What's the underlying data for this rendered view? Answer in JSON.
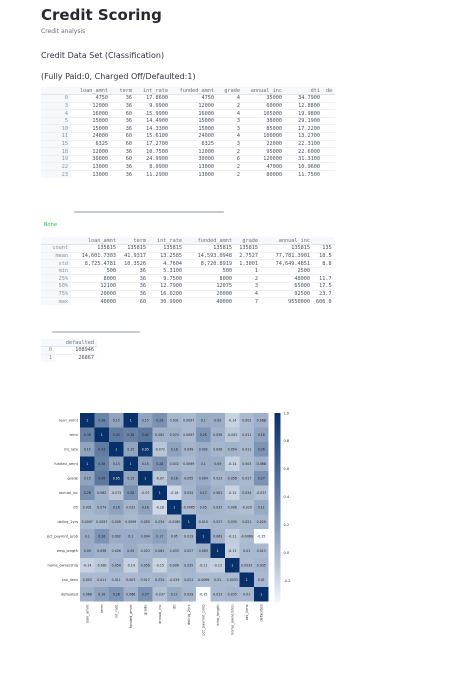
{
  "page": {
    "title": "Credit Scoring",
    "subtitle": "Credit analysis",
    "section_title": "Credit Data Set (Classification)",
    "legend_note": "(Fully Paid:0, Charged Off/Defaulted:1)",
    "none_output": "None"
  },
  "head_table": {
    "columns": [
      "",
      "loan_amnt",
      "term",
      "int_rate",
      "funded_amnt",
      "grade",
      "annual_inc",
      "dti",
      "de"
    ],
    "rows": [
      [
        "0",
        "4750",
        "36",
        "17.8600",
        "4750",
        "4",
        "35000",
        "34.7900",
        ""
      ],
      [
        "3",
        "12000",
        "36",
        "9.9900",
        "12000",
        "2",
        "60000",
        "12.8800",
        ""
      ],
      [
        "4",
        "16000",
        "60",
        "15.9900",
        "16000",
        "4",
        "105000",
        "19.9800",
        ""
      ],
      [
        "5",
        "15000",
        "36",
        "14.4900",
        "15000",
        "3",
        "38000",
        "29.1900",
        ""
      ],
      [
        "10",
        "15000",
        "36",
        "14.3300",
        "15000",
        "3",
        "85000",
        "17.2200",
        ""
      ],
      [
        "11",
        "24000",
        "60",
        "15.6100",
        "24000",
        "4",
        "100000",
        "13.2700",
        ""
      ],
      [
        "15",
        "6325",
        "60",
        "17.2700",
        "6325",
        "3",
        "22000",
        "22.3100",
        ""
      ],
      [
        "18",
        "12000",
        "36",
        "10.7500",
        "12000",
        "2",
        "95000",
        "22.6000",
        ""
      ],
      [
        "19",
        "30000",
        "60",
        "24.9900",
        "30000",
        "6",
        "120000",
        "31.3100",
        ""
      ],
      [
        "22",
        "13000",
        "36",
        "8.9900",
        "13000",
        "2",
        "47000",
        "10.9600",
        ""
      ],
      [
        "23",
        "13000",
        "36",
        "11.2900",
        "13000",
        "2",
        "80000",
        "11.7500",
        ""
      ]
    ]
  },
  "describe_table": {
    "columns": [
      "",
      "loan_amnt",
      "term",
      "int_rate",
      "funded_amnt",
      "grade",
      "annual_inc",
      ""
    ],
    "rows": [
      [
        "count",
        "135815",
        "135815",
        "135815",
        "135815",
        "135815",
        "135815",
        "135"
      ],
      [
        "mean",
        "14,601.7303",
        "41.9317",
        "13.2585",
        "14,593.0948",
        "2.7527",
        "77,781.3901",
        "18.5"
      ],
      [
        "std",
        "8,725.4781",
        "10.3526",
        "4.7604",
        "8,720.8919",
        "1.3001",
        "74,649.4851",
        "8.8"
      ],
      [
        "min",
        "500",
        "36",
        "5.3100",
        "500",
        "1",
        "2500",
        ""
      ],
      [
        "25%",
        "8000",
        "36",
        "9.7500",
        "8000",
        "2",
        "48000",
        "11.7"
      ],
      [
        "50%",
        "12100",
        "36",
        "12.7900",
        "12075",
        "3",
        "65000",
        "17.5"
      ],
      [
        "75%",
        "20000",
        "36",
        "16.0200",
        "20000",
        "4",
        "92500",
        "23.7"
      ],
      [
        "max",
        "40000",
        "60",
        "30.9900",
        "40000",
        "7",
        "9550000",
        "606.0"
      ]
    ]
  },
  "default_table": {
    "columns": [
      "",
      "defaulted"
    ],
    "rows": [
      [
        "0",
        "108946"
      ],
      [
        "1",
        "26867"
      ]
    ]
  },
  "chart_data": {
    "type": "heatmap",
    "labels": [
      "loan_amnt",
      "term",
      "int_rate",
      "funded_amnt",
      "grade",
      "annual_inc",
      "dti",
      "delinq_2yrs",
      "pct_paymnt_prob",
      "emp_length",
      "home_ownership",
      "tax_liens",
      "defaulted"
    ],
    "matrix": [
      [
        1,
        0.38,
        0.15,
        1,
        0.15,
        0.28,
        0.031,
        0.0097,
        0.1,
        0.09,
        -0.14,
        0.003,
        0.068
      ],
      [
        0.38,
        1,
        0.43,
        0.38,
        0.45,
        0.062,
        0.074,
        0.0097,
        0.26,
        0.056,
        -0.081,
        0.011,
        0.16
      ],
      [
        0.15,
        0.43,
        1,
        0.15,
        0.95,
        -0.072,
        0.16,
        0.049,
        0.092,
        0.026,
        0.054,
        0.011,
        0.26
      ],
      [
        1,
        0.38,
        0.15,
        1,
        0.15,
        0.28,
        0.032,
        0.0099,
        0.1,
        0.09,
        -0.14,
        0.003,
        0.068
      ],
      [
        0.15,
        0.45,
        0.95,
        0.15,
        1,
        -0.07,
        0.16,
        0.055,
        0.094,
        0.023,
        0.056,
        0.017,
        0.27
      ],
      [
        0.28,
        0.062,
        -0.072,
        0.28,
        -0.07,
        1,
        -0.18,
        0.034,
        0.17,
        0.061,
        -0.15,
        0.034,
        -0.037
      ],
      [
        0.031,
        0.074,
        0.16,
        0.032,
        0.16,
        -0.18,
        1,
        -0.0085,
        0.05,
        0.033,
        0.006,
        -0.029,
        0.11
      ],
      [
        0.0097,
        0.0097,
        0.049,
        0.0099,
        0.055,
        0.034,
        -0.0085,
        1,
        0.019,
        0.027,
        0.035,
        0.021,
        0.029
      ],
      [
        0.1,
        0.26,
        0.092,
        0.1,
        0.094,
        0.17,
        0.05,
        0.019,
        1,
        0.063,
        -0.11,
        -0.0069,
        -0.35
      ],
      [
        0.09,
        0.056,
        0.026,
        0.09,
        0.023,
        0.061,
        0.033,
        0.027,
        0.063,
        1,
        -0.13,
        0.01,
        0.013
      ],
      [
        -0.14,
        -0.081,
        0.054,
        -0.14,
        0.056,
        -0.15,
        0.006,
        0.035,
        -0.11,
        -0.13,
        1,
        0.0033,
        0.035
      ],
      [
        0.003,
        0.011,
        0.011,
        0.003,
        0.017,
        0.034,
        -0.029,
        0.021,
        -0.0069,
        0.01,
        0.0033,
        1,
        0.01
      ],
      [
        0.068,
        0.16,
        0.26,
        0.068,
        0.27,
        -0.037,
        0.11,
        0.029,
        -0.35,
        0.013,
        0.035,
        0.01,
        1
      ]
    ],
    "colorbar_ticks": [
      "1.0",
      "0.8",
      "0.6",
      "0.4",
      "0.2",
      "0.0",
      "-0.2"
    ],
    "vmin": -0.35,
    "vmax": 1.0,
    "colors": {
      "low": "#f7fbff",
      "high": "#08306b"
    }
  }
}
